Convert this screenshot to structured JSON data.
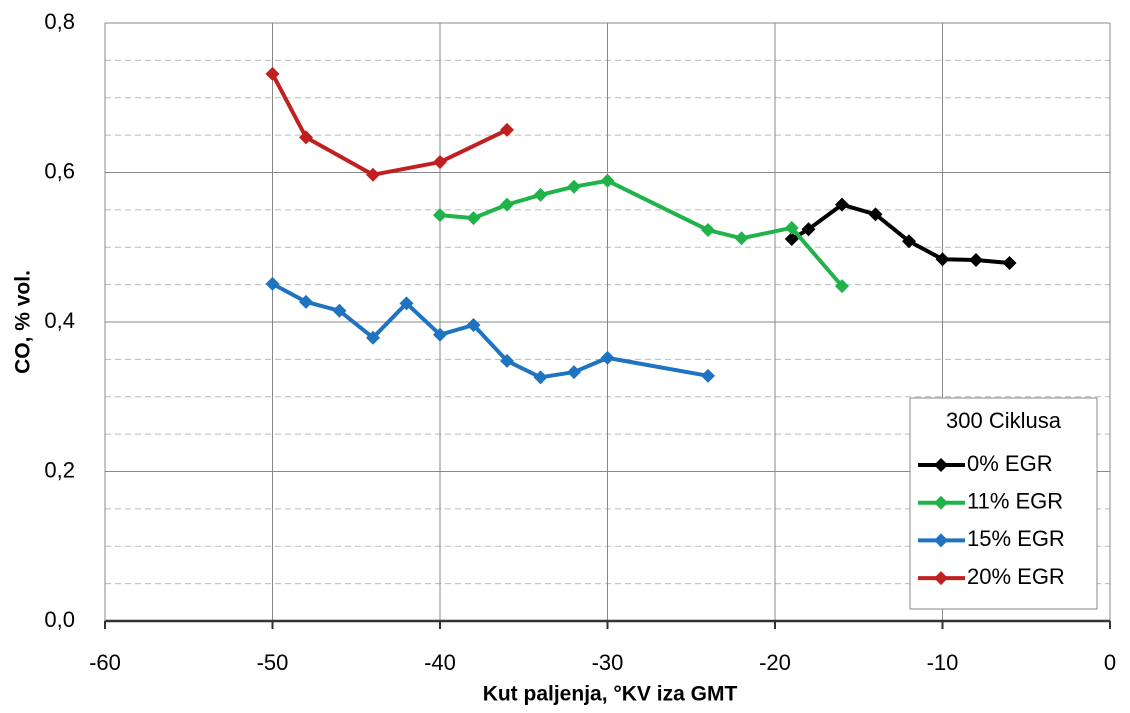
{
  "chart_data": {
    "type": "line",
    "x_label": "Kut paljenja, °KV iza GMT",
    "y_label": "CO, % vol.",
    "legend_title": "300 Ciklusa",
    "legend": "lower right",
    "grid": true,
    "xlim": [
      -60,
      0
    ],
    "xticks": [
      -60,
      -50,
      -40,
      -30,
      -20,
      -10,
      0
    ],
    "ylim": [
      0,
      0.8
    ],
    "yticks": [
      {
        "value": 0,
        "label": "0,0"
      },
      {
        "value": 0.2,
        "label": "0,2"
      },
      {
        "value": 0.4,
        "label": "0,4"
      },
      {
        "value": 0.6,
        "label": "0,6"
      },
      {
        "value": 0.8,
        "label": "0,8"
      }
    ],
    "y_minor_ticks": [
      0.05,
      0.1,
      0.15,
      0.25,
      0.3,
      0.35,
      0.45,
      0.5,
      0.55,
      0.65,
      0.7,
      0.75
    ],
    "series": [
      {
        "name": "0% EGR",
        "color": "#000000",
        "x": [
          -19,
          -18,
          -16,
          -14,
          -12,
          -10,
          -8,
          -6
        ],
        "values": [
          0.511,
          0.524,
          0.557,
          0.544,
          0.508,
          0.484,
          0.483,
          0.479
        ]
      },
      {
        "name": "11% EGR",
        "color": "#1fb34a",
        "x": [
          -40,
          -38,
          -36,
          -34,
          -32,
          -30,
          -24,
          -22,
          -19,
          -16
        ],
        "values": [
          0.543,
          0.539,
          0.557,
          0.57,
          0.581,
          0.589,
          0.523,
          0.512,
          0.526,
          0.448
        ]
      },
      {
        "name": "15% EGR",
        "color": "#1f73c0",
        "x": [
          -50,
          -48,
          -46,
          -44,
          -42,
          -40,
          -38,
          -36,
          -34,
          -32,
          -30,
          -24
        ],
        "values": [
          0.451,
          0.427,
          0.415,
          0.379,
          0.425,
          0.383,
          0.396,
          0.348,
          0.326,
          0.333,
          0.352,
          0.328
        ]
      },
      {
        "name": "20% EGR",
        "color": "#c0201f",
        "x": [
          -50,
          -48,
          -44,
          -40,
          -36
        ],
        "values": [
          0.732,
          0.647,
          0.597,
          0.614,
          0.657
        ]
      }
    ]
  }
}
